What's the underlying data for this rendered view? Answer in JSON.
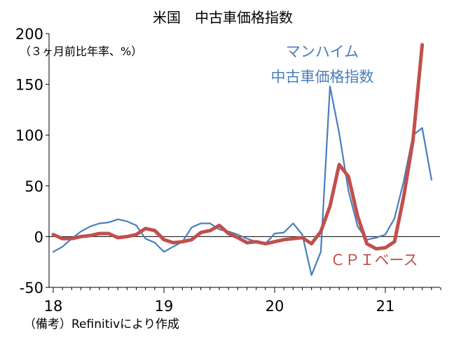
{
  "chart_data": {
    "type": "line",
    "title": "米国　中古車価格指数",
    "unit_label": "（３ヶ月前比年率、%）",
    "note": "（備考）Refinitivにより作成",
    "ylim": [
      -50,
      200
    ],
    "yticks": [
      {
        "value": 200,
        "label": "200"
      },
      {
        "value": 150,
        "label": "150"
      },
      {
        "value": 100,
        "label": "100"
      },
      {
        "value": 50,
        "label": "50"
      },
      {
        "value": 0,
        "label": "0"
      },
      {
        "value": -50,
        "label": "-50"
      }
    ],
    "xticks": [
      {
        "value": 2018,
        "label": "18"
      },
      {
        "value": 2019,
        "label": "19"
      },
      {
        "value": 2020,
        "label": "20"
      },
      {
        "value": 2021,
        "label": "21"
      }
    ],
    "xlim": [
      2018,
      2021.5
    ],
    "series": [
      {
        "name": "マンハイム\n中古車価格指数",
        "color": "#4a7ebb",
        "x": [
          2018.0,
          2018.083,
          2018.167,
          2018.25,
          2018.333,
          2018.417,
          2018.5,
          2018.583,
          2018.667,
          2018.75,
          2018.833,
          2018.917,
          2019.0,
          2019.083,
          2019.167,
          2019.25,
          2019.333,
          2019.417,
          2019.5,
          2019.583,
          2019.667,
          2019.75,
          2019.833,
          2019.917,
          2020.0,
          2020.083,
          2020.167,
          2020.25,
          2020.333,
          2020.417,
          2020.5,
          2020.583,
          2020.667,
          2020.75,
          2020.833,
          2020.917,
          2021.0,
          2021.083,
          2021.167,
          2021.25,
          2021.333,
          2021.417
        ],
        "values": [
          -15,
          -10,
          -2,
          5,
          10,
          13,
          14,
          17,
          15,
          11,
          -2,
          -6,
          -15,
          -10,
          -5,
          9,
          13,
          13,
          7,
          5,
          2,
          -2,
          -5,
          -7,
          3,
          4,
          13,
          2,
          -38,
          -15,
          148,
          102,
          45,
          10,
          -3,
          -1,
          2,
          18,
          55,
          100,
          107,
          56
        ]
      },
      {
        "name": "ＣＰＩベース",
        "color": "#c0504d",
        "x": [
          2018.0,
          2018.083,
          2018.167,
          2018.25,
          2018.333,
          2018.417,
          2018.5,
          2018.583,
          2018.667,
          2018.75,
          2018.833,
          2018.917,
          2019.0,
          2019.083,
          2019.167,
          2019.25,
          2019.333,
          2019.417,
          2019.5,
          2019.583,
          2019.667,
          2019.75,
          2019.833,
          2019.917,
          2020.0,
          2020.083,
          2020.167,
          2020.25,
          2020.333,
          2020.417,
          2020.5,
          2020.583,
          2020.667,
          2020.75,
          2020.833,
          2020.917,
          2021.0,
          2021.083,
          2021.167,
          2021.25,
          2021.333
        ],
        "values": [
          2,
          -2,
          -2,
          0,
          1,
          3,
          3,
          -1,
          0,
          2,
          8,
          6,
          -3,
          -6,
          -5,
          -3,
          4,
          6,
          11,
          3,
          -1,
          -6,
          -5,
          -7,
          -5,
          -3,
          -2,
          -1,
          -7,
          5,
          30,
          71,
          59,
          20,
          -7,
          -12,
          -11,
          -5,
          40,
          95,
          189
        ]
      }
    ]
  }
}
